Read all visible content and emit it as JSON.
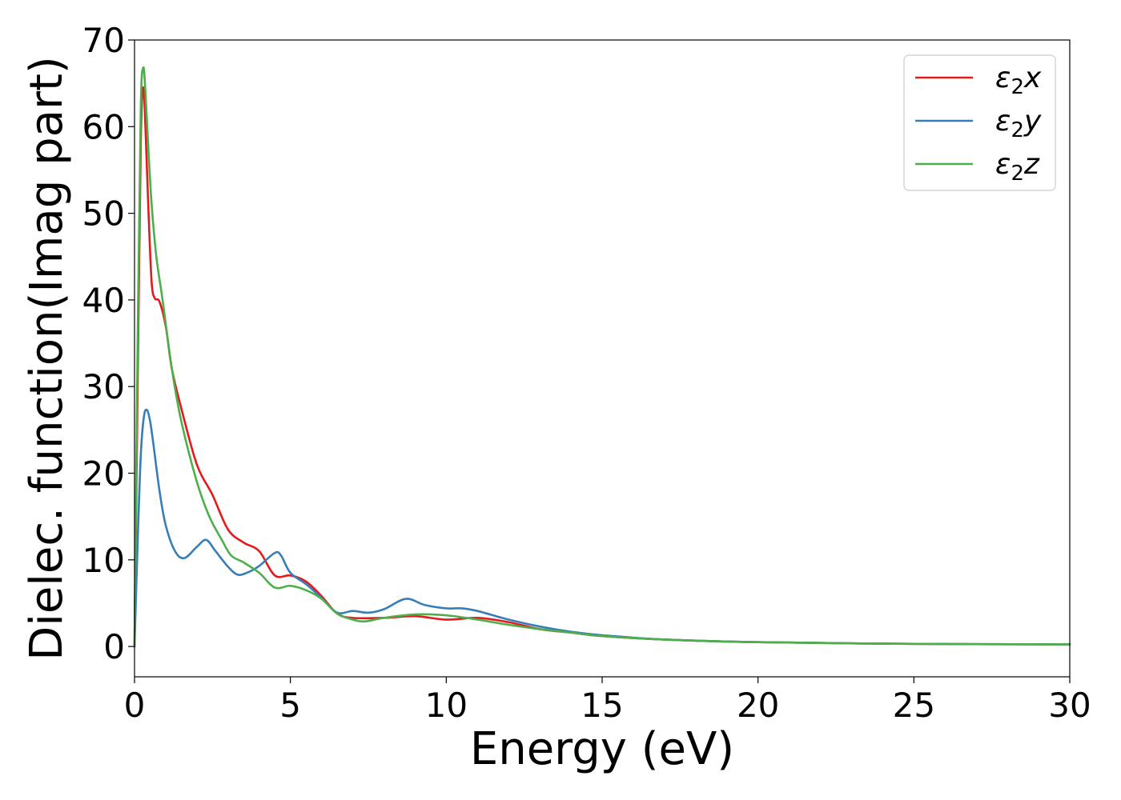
{
  "chart_data": {
    "type": "line",
    "xlabel": "Energy (eV)",
    "ylabel": "Dielec. function(Imag part)",
    "xlim": [
      0,
      30
    ],
    "ylim": [
      -3.5,
      70
    ],
    "x_ticks": [
      0,
      5,
      10,
      15,
      20,
      25,
      30
    ],
    "y_ticks": [
      0,
      10,
      20,
      30,
      40,
      50,
      60,
      70
    ],
    "grid": false,
    "legend_position": "top-right",
    "series": [
      {
        "name": "ε₂x",
        "legend_main": "ε",
        "legend_sub": "2",
        "legend_var": "x",
        "color": "#e41a1c",
        "x": [
          0,
          0.1,
          0.2,
          0.28,
          0.35,
          0.45,
          0.55,
          0.65,
          0.8,
          1.0,
          1.2,
          1.5,
          2.0,
          2.5,
          3.0,
          3.5,
          4.0,
          4.5,
          5.0,
          5.5,
          6.0,
          6.5,
          7.0,
          8.0,
          9.0,
          10.0,
          11.0,
          12.0,
          13.0,
          14.0,
          15.0,
          17.0,
          20.0,
          25.0,
          30.0
        ],
        "y": [
          0,
          30,
          58,
          64.5,
          60,
          50,
          42,
          40.2,
          39.8,
          37,
          32,
          27.5,
          21,
          17.5,
          13.5,
          12,
          11,
          8.2,
          8.2,
          7.5,
          5.8,
          3.8,
          3.3,
          3.3,
          3.5,
          3.1,
          3.3,
          2.8,
          2.0,
          1.6,
          1.2,
          0.8,
          0.5,
          0.3,
          0.25
        ]
      },
      {
        "name": "ε₂y",
        "legend_main": "ε",
        "legend_sub": "2",
        "legend_var": "y",
        "color": "#377eb8",
        "x": [
          0,
          0.1,
          0.2,
          0.3,
          0.4,
          0.5,
          0.6,
          0.8,
          1.0,
          1.3,
          1.6,
          2.0,
          2.3,
          2.6,
          3.0,
          3.3,
          3.6,
          4.0,
          4.5,
          4.7,
          5.0,
          5.5,
          6.0,
          6.5,
          7.0,
          7.5,
          8.0,
          8.7,
          9.3,
          10.0,
          10.5,
          11.0,
          12.0,
          13.0,
          14.0,
          15.0,
          17.0,
          20.0,
          25.0,
          30.0
        ],
        "y": [
          0,
          12,
          22,
          26.5,
          27.3,
          26,
          23.5,
          18,
          14,
          11,
          10.2,
          11.5,
          12.3,
          11,
          9.2,
          8.3,
          8.5,
          9.3,
          10.8,
          10.5,
          8.5,
          7.2,
          5.6,
          3.9,
          4.1,
          3.9,
          4.3,
          5.5,
          4.8,
          4.4,
          4.4,
          4.1,
          3.1,
          2.3,
          1.7,
          1.3,
          0.8,
          0.5,
          0.3,
          0.25
        ]
      },
      {
        "name": "ε₂z",
        "legend_main": "ε",
        "legend_sub": "2",
        "legend_var": "z",
        "color": "#4daf4a",
        "x": [
          0,
          0.1,
          0.2,
          0.28,
          0.35,
          0.45,
          0.55,
          0.7,
          0.9,
          1.2,
          1.5,
          2.0,
          2.4,
          2.8,
          3.1,
          3.5,
          4.0,
          4.5,
          5.0,
          5.5,
          6.0,
          6.5,
          7.0,
          7.4,
          8.0,
          9.0,
          10.0,
          11.0,
          12.0,
          13.0,
          14.0,
          15.0,
          17.0,
          20.0,
          25.0,
          30.0
        ],
        "y": [
          0,
          35,
          62,
          66.8,
          64,
          57,
          51,
          45,
          40,
          32,
          26,
          19,
          15,
          12.3,
          10.5,
          9.7,
          8.5,
          6.8,
          7.0,
          6.5,
          5.5,
          3.8,
          3.1,
          2.9,
          3.3,
          3.7,
          3.6,
          3.1,
          2.5,
          2.0,
          1.6,
          1.2,
          0.8,
          0.5,
          0.3,
          0.25
        ]
      }
    ]
  }
}
